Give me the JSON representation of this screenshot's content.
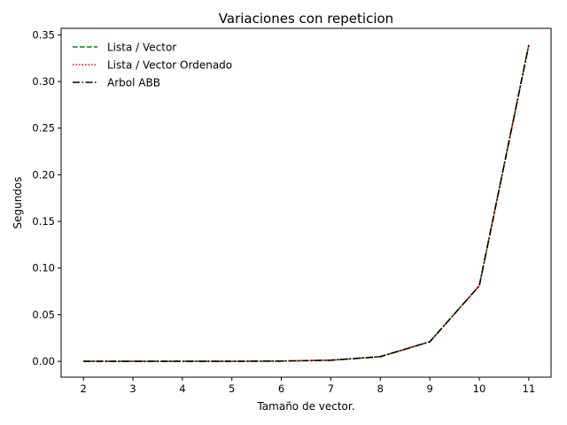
{
  "chart_data": {
    "type": "line",
    "title": "Variaciones con repeticion",
    "xlabel": "Tamaño de vector.",
    "ylabel": "Segundos",
    "x": [
      2,
      3,
      4,
      5,
      6,
      7,
      8,
      9,
      10,
      11
    ],
    "xticks": [
      "2",
      "3",
      "4",
      "5",
      "6",
      "7",
      "8",
      "9",
      "10",
      "11"
    ],
    "yticks": [
      "0.00",
      "0.05",
      "0.10",
      "0.15",
      "0.20",
      "0.25",
      "0.30",
      "0.35"
    ],
    "ytick_values": [
      0.0,
      0.05,
      0.1,
      0.15,
      0.2,
      0.25,
      0.3,
      0.35
    ],
    "xlim": [
      1.55,
      11.45
    ],
    "ylim": [
      -0.017,
      0.357
    ],
    "grid": false,
    "legend_position": "top-left",
    "series": [
      {
        "name": "Lista / Vector",
        "color": "#008000",
        "style": "dashed",
        "values": [
          0.0,
          0.0,
          0.0,
          0.0,
          0.0003,
          0.0012,
          0.005,
          0.021,
          0.081,
          0.339
        ]
      },
      {
        "name": "Lista / Vector Ordenado",
        "color": "#ff0000",
        "style": "dotted",
        "values": [
          0.0,
          0.0,
          0.0,
          0.0,
          0.0003,
          0.0012,
          0.005,
          0.021,
          0.081,
          0.339
        ]
      },
      {
        "name": "Arbol ABB",
        "color": "#000000",
        "style": "dashdot",
        "values": [
          0.0,
          0.0,
          0.0,
          0.0,
          0.0003,
          0.0012,
          0.005,
          0.021,
          0.081,
          0.339
        ]
      }
    ]
  }
}
